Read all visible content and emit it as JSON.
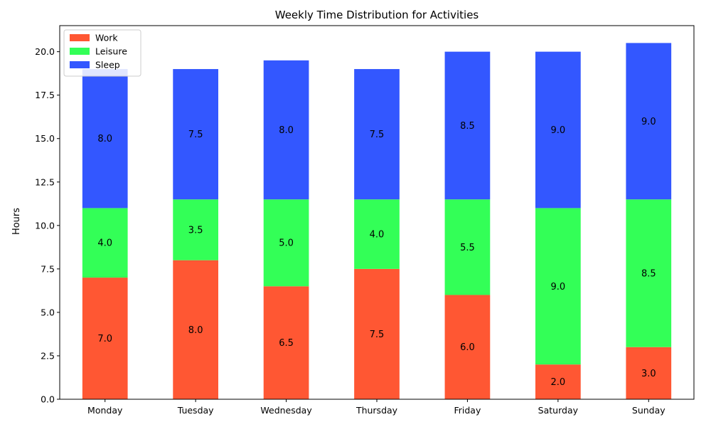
{
  "chart_data": {
    "type": "bar",
    "stacked": true,
    "title": "Weekly Time Distribution for Activities",
    "xlabel": "",
    "ylabel": "Hours",
    "categories": [
      "Monday",
      "Tuesday",
      "Wednesday",
      "Thursday",
      "Friday",
      "Saturday",
      "Sunday"
    ],
    "series": [
      {
        "name": "Work",
        "color": "#ff5733",
        "values": [
          7.0,
          8.0,
          6.5,
          7.5,
          6.0,
          2.0,
          3.0
        ]
      },
      {
        "name": "Leisure",
        "color": "#33ff57",
        "values": [
          4.0,
          3.5,
          5.0,
          4.0,
          5.5,
          9.0,
          8.5
        ]
      },
      {
        "name": "Sleep",
        "color": "#3357ff",
        "values": [
          8.0,
          7.5,
          8.0,
          7.5,
          8.5,
          9.0,
          9.0
        ]
      }
    ],
    "ylim": [
      0,
      21.5
    ],
    "yticks": [
      0.0,
      2.5,
      5.0,
      7.5,
      10.0,
      12.5,
      15.0,
      17.5,
      20.0
    ],
    "ytick_labels": [
      "0.0",
      "2.5",
      "5.0",
      "7.5",
      "10.0",
      "12.5",
      "15.0",
      "17.5",
      "20.0"
    ],
    "grid": false,
    "legend_position": "top-left"
  }
}
